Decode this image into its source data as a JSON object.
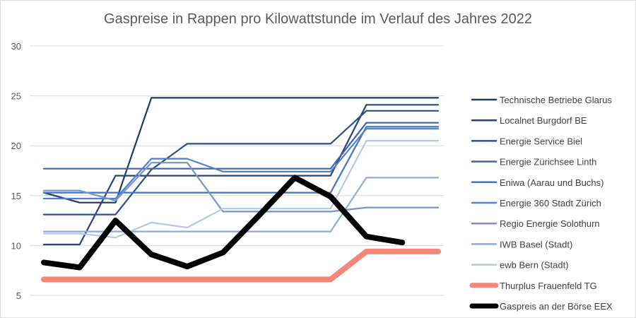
{
  "chart_data": {
    "type": "line",
    "title": "Gaspreise in Rappen pro Kilowattstunde im Verlauf des Jahres 2022",
    "xlabel": "",
    "ylabel": "",
    "ylim": [
      5,
      30
    ],
    "yticks": [
      "5",
      "10",
      "15",
      "20",
      "25",
      "30"
    ],
    "grid": true,
    "legend_position": "right",
    "x": [
      1,
      2,
      3,
      4,
      5,
      6,
      7,
      8,
      9,
      10,
      11,
      12
    ],
    "series": [
      {
        "name": "Technische Betriebe Glarus",
        "color": "#1f3864",
        "width": 2.2,
        "values": [
          15.3,
          14.3,
          14.3,
          24.8,
          24.8,
          24.8,
          24.8,
          24.8,
          24.8,
          24.8,
          24.8,
          24.8
        ]
      },
      {
        "name": "Localnet Burgdorf BE",
        "color": "#264478",
        "width": 2.2,
        "values": [
          10.1,
          10.1,
          17.0,
          17.0,
          17.0,
          17.0,
          17.0,
          17.0,
          17.0,
          24.1,
          24.1,
          24.1
        ]
      },
      {
        "name": "Energie Service Biel",
        "color": "#2a4f8f",
        "width": 2.2,
        "values": [
          13.1,
          13.1,
          13.1,
          17.6,
          20.2,
          20.2,
          20.2,
          20.2,
          20.2,
          23.5,
          23.5,
          23.5
        ]
      },
      {
        "name": "Energie Zürichsee Linth",
        "color": "#3b64ad",
        "width": 2.2,
        "values": [
          17.7,
          17.7,
          17.7,
          17.7,
          17.7,
          17.7,
          17.7,
          17.7,
          17.7,
          22.3,
          22.3,
          22.3
        ]
      },
      {
        "name": "Eniwa (Aarau und Buchs)",
        "color": "#4472c4",
        "width": 2.2,
        "values": [
          15.3,
          15.3,
          15.3,
          15.3,
          15.3,
          15.3,
          15.3,
          15.3,
          15.3,
          21.9,
          21.9,
          21.9
        ]
      },
      {
        "name": "Energie 360 Stadt Zürich",
        "color": "#4f7fd1",
        "width": 2.2,
        "values": [
          14.7,
          14.7,
          14.7,
          18.7,
          18.7,
          17.4,
          17.4,
          17.4,
          17.4,
          21.7,
          21.7,
          21.7
        ]
      },
      {
        "name": "Regio Energie Solothurn",
        "color": "#7493cc",
        "width": 2.2,
        "values": [
          15.5,
          15.5,
          14.5,
          18.3,
          18.3,
          13.4,
          13.4,
          13.4,
          13.4,
          13.8,
          13.8,
          13.8
        ]
      },
      {
        "name": "IWB Basel (Stadt)",
        "color": "#8faadc",
        "width": 2.2,
        "values": [
          11.4,
          11.4,
          11.4,
          11.4,
          11.4,
          11.4,
          11.4,
          11.4,
          11.4,
          16.8,
          16.8,
          16.8
        ]
      },
      {
        "name": "ewb Bern (Stadt)",
        "color": "#b4c7e7",
        "width": 2.2,
        "values": [
          11.2,
          11.2,
          10.8,
          12.3,
          11.8,
          13.7,
          13.7,
          13.7,
          13.7,
          20.5,
          20.5,
          20.5
        ]
      },
      {
        "name": "Thurplus Frauenfeld TG",
        "color": "#f4877a",
        "width": 8,
        "values": [
          6.6,
          6.6,
          6.6,
          6.6,
          6.6,
          6.6,
          6.6,
          6.6,
          6.6,
          9.4,
          9.4,
          9.4
        ]
      },
      {
        "name": "Gaspreis an der Börse EEX",
        "color": "#000000",
        "width": 8,
        "values": [
          8.3,
          7.8,
          12.5,
          9.1,
          7.9,
          9.3,
          13.0,
          16.8,
          14.9,
          10.9,
          10.3,
          null
        ]
      }
    ]
  }
}
